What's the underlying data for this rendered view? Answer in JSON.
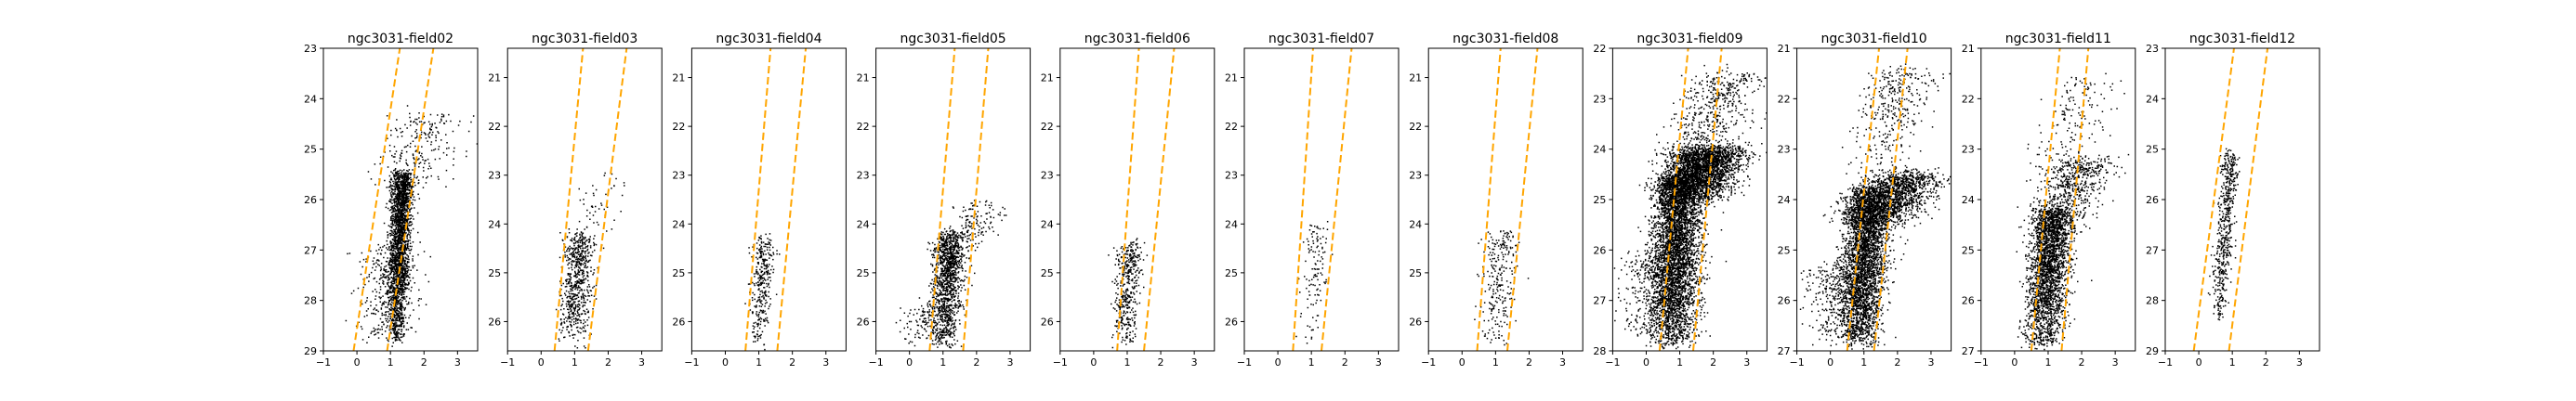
{
  "chart_data": [
    {
      "type": "scatter",
      "title": "ngc3031-field02",
      "xlim": [
        -1,
        3.6
      ],
      "ylim": [
        29,
        23
      ],
      "xticks": [
        "−1",
        "0",
        "1",
        "2",
        "3"
      ],
      "yticks": [
        "23",
        "24",
        "25",
        "26",
        "27",
        "28",
        "29"
      ],
      "guide_lines": [
        {
          "x_at_ymin": -0.1,
          "x_at_ymax": 1.28
        },
        {
          "x_at_ymin": 0.9,
          "x_at_ymax": 2.28
        }
      ],
      "clusters": [
        {
          "x0": 1.12,
          "y0": 28.8,
          "x1": 1.35,
          "y1": 25.5,
          "sx": 0.16,
          "n": 2200
        },
        {
          "x0": 1.4,
          "y0": 26,
          "x1": 2.2,
          "y1": 24.3,
          "sx": 0.5,
          "n": 250
        },
        {
          "x0": 0.7,
          "y0": 28.8,
          "x1": 0.95,
          "y1": 27,
          "sx": 0.45,
          "n": 300
        }
      ],
      "guide_color": "#FFA500"
    },
    {
      "type": "scatter",
      "title": "ngc3031-field03",
      "xlim": [
        -1,
        3.6
      ],
      "ylim": [
        26.6,
        20.4
      ],
      "xticks": [
        "−1",
        "0",
        "1",
        "2",
        "3"
      ],
      "yticks": [
        "21",
        "22",
        "23",
        "24",
        "25",
        "26"
      ],
      "guide_lines": [
        {
          "x_at_ymin": 0.4,
          "x_at_ymax": 1.25
        },
        {
          "x_at_ymin": 1.4,
          "x_at_ymax": 2.55
        }
      ],
      "clusters": [
        {
          "x0": 0.9,
          "y0": 26.5,
          "x1": 1.15,
          "y1": 24.2,
          "sx": 0.22,
          "n": 650
        },
        {
          "x0": 1.3,
          "y0": 24.5,
          "x1": 1.9,
          "y1": 23,
          "sx": 0.35,
          "n": 60
        }
      ],
      "guide_color": "#FFA500"
    },
    {
      "type": "scatter",
      "title": "ngc3031-field04",
      "xlim": [
        -1,
        3.6
      ],
      "ylim": [
        26.6,
        20.4
      ],
      "xticks": [
        "−1",
        "0",
        "1",
        "2",
        "3"
      ],
      "yticks": [
        "21",
        "22",
        "23",
        "24",
        "25",
        "26"
      ],
      "guide_lines": [
        {
          "x_at_ymin": 0.6,
          "x_at_ymax": 1.35
        },
        {
          "x_at_ymin": 1.55,
          "x_at_ymax": 2.4
        }
      ],
      "clusters": [
        {
          "x0": 0.95,
          "y0": 26.5,
          "x1": 1.15,
          "y1": 24.3,
          "sx": 0.16,
          "n": 320
        }
      ],
      "guide_color": "#FFA500"
    },
    {
      "type": "scatter",
      "title": "ngc3031-field05",
      "xlim": [
        -1,
        3.6
      ],
      "ylim": [
        26.6,
        20.4
      ],
      "xticks": [
        "−1",
        "0",
        "1",
        "2",
        "3"
      ],
      "yticks": [
        "21",
        "22",
        "23",
        "24",
        "25",
        "26"
      ],
      "guide_lines": [
        {
          "x_at_ymin": 0.6,
          "x_at_ymax": 1.35
        },
        {
          "x_at_ymin": 1.6,
          "x_at_ymax": 2.35
        }
      ],
      "clusters": [
        {
          "x0": 1.0,
          "y0": 26.5,
          "x1": 1.2,
          "y1": 24.2,
          "sx": 0.22,
          "n": 1200
        },
        {
          "x0": 1.5,
          "y0": 24.5,
          "x1": 2.3,
          "y1": 23.6,
          "sx": 0.4,
          "n": 150
        },
        {
          "x0": 0.2,
          "y0": 26.4,
          "x1": 0.6,
          "y1": 25.6,
          "sx": 0.4,
          "n": 120
        }
      ],
      "guide_color": "#FFA500"
    },
    {
      "type": "scatter",
      "title": "ngc3031-field06",
      "xlim": [
        -1,
        3.6
      ],
      "ylim": [
        26.6,
        20.4
      ],
      "xticks": [
        "−1",
        "0",
        "1",
        "2",
        "3"
      ],
      "yticks": [
        "21",
        "22",
        "23",
        "24",
        "25",
        "26"
      ],
      "guide_lines": [
        {
          "x_at_ymin": 0.7,
          "x_at_ymax": 1.35
        },
        {
          "x_at_ymin": 1.5,
          "x_at_ymax": 2.4
        }
      ],
      "clusters": [
        {
          "x0": 0.9,
          "y0": 26.5,
          "x1": 1.05,
          "y1": 24.4,
          "sx": 0.18,
          "n": 420
        }
      ],
      "guide_color": "#FFA500"
    },
    {
      "type": "scatter",
      "title": "ngc3031-field07",
      "xlim": [
        -1,
        3.6
      ],
      "ylim": [
        26.6,
        20.4
      ],
      "xticks": [
        "−1",
        "0",
        "1",
        "2",
        "3"
      ],
      "yticks": [
        "21",
        "22",
        "23",
        "24",
        "25",
        "26"
      ],
      "guide_lines": [
        {
          "x_at_ymin": 0.45,
          "x_at_ymax": 1.05
        },
        {
          "x_at_ymin": 1.3,
          "x_at_ymax": 2.2
        }
      ],
      "clusters": [
        {
          "x0": 0.95,
          "y0": 26.4,
          "x1": 1.2,
          "y1": 24,
          "sx": 0.18,
          "n": 120
        }
      ],
      "guide_color": "#FFA500"
    },
    {
      "type": "scatter",
      "title": "ngc3031-field08",
      "xlim": [
        -1,
        3.6
      ],
      "ylim": [
        26.6,
        20.4
      ],
      "xticks": [
        "−1",
        "0",
        "1",
        "2",
        "3"
      ],
      "yticks": [
        "21",
        "22",
        "23",
        "24",
        "25",
        "26"
      ],
      "guide_lines": [
        {
          "x_at_ymin": 0.45,
          "x_at_ymax": 1.15
        },
        {
          "x_at_ymin": 1.35,
          "x_at_ymax": 2.25
        }
      ],
      "clusters": [
        {
          "x0": 0.9,
          "y0": 26.5,
          "x1": 1.2,
          "y1": 24.2,
          "sx": 0.25,
          "n": 260
        }
      ],
      "guide_color": "#FFA500"
    },
    {
      "type": "scatter",
      "title": "ngc3031-field09",
      "xlim": [
        -1,
        3.6
      ],
      "ylim": [
        28,
        22
      ],
      "xticks": [
        "−1",
        "0",
        "1",
        "2",
        "3"
      ],
      "yticks": [
        "22",
        "23",
        "24",
        "25",
        "26",
        "27",
        "28"
      ],
      "guide_lines": [
        {
          "x_at_ymin": 0.4,
          "x_at_ymax": 1.25
        },
        {
          "x_at_ymin": 1.4,
          "x_at_ymax": 2.25
        }
      ],
      "clusters": [
        {
          "x0": 0.7,
          "y0": 27.9,
          "x1": 1.0,
          "y1": 24.5,
          "sx": 0.35,
          "n": 4000
        },
        {
          "x0": 1.3,
          "y0": 25,
          "x1": 1.9,
          "y1": 24,
          "sx": 0.55,
          "n": 2500
        },
        {
          "x0": 1.4,
          "y0": 24.3,
          "x1": 2.5,
          "y1": 22.5,
          "sx": 0.55,
          "n": 500
        },
        {
          "x0": 0.4,
          "y0": 27.8,
          "x1": 0.4,
          "y1": 26,
          "sx": 0.55,
          "n": 500
        }
      ],
      "guide_color": "#FFA500"
    },
    {
      "type": "scatter",
      "title": "ngc3031-field10",
      "xlim": [
        -1,
        3.6
      ],
      "ylim": [
        27,
        21
      ],
      "xticks": [
        "−1",
        "0",
        "1",
        "2",
        "3"
      ],
      "yticks": [
        "21",
        "22",
        "23",
        "24",
        "25",
        "26",
        "27"
      ],
      "guide_lines": [
        {
          "x_at_ymin": 0.5,
          "x_at_ymax": 1.45
        },
        {
          "x_at_ymin": 1.3,
          "x_at_ymax": 2.3
        }
      ],
      "clusters": [
        {
          "x0": 0.8,
          "y0": 26.9,
          "x1": 1.15,
          "y1": 23.8,
          "sx": 0.33,
          "n": 3200
        },
        {
          "x0": 1.3,
          "y0": 24.5,
          "x1": 2.3,
          "y1": 23.5,
          "sx": 0.55,
          "n": 1400
        },
        {
          "x0": 1.3,
          "y0": 23.5,
          "x1": 2.2,
          "y1": 21.4,
          "sx": 0.5,
          "n": 350
        },
        {
          "x0": 0.3,
          "y0": 26.8,
          "x1": 0.3,
          "y1": 25.3,
          "sx": 0.5,
          "n": 400
        }
      ],
      "guide_color": "#FFA500"
    },
    {
      "type": "scatter",
      "title": "ngc3031-field11",
      "xlim": [
        -1,
        3.6
      ],
      "ylim": [
        27,
        21
      ],
      "xticks": [
        "−1",
        "0",
        "1",
        "2",
        "3"
      ],
      "yticks": [
        "21",
        "22",
        "23",
        "24",
        "25",
        "26",
        "27"
      ],
      "guide_lines": [
        {
          "x_at_ymin": 0.5,
          "x_at_ymax": 1.35
        },
        {
          "x_at_ymin": 1.4,
          "x_at_ymax": 2.2
        }
      ],
      "clusters": [
        {
          "x0": 0.8,
          "y0": 26.9,
          "x1": 1.15,
          "y1": 24.2,
          "sx": 0.3,
          "n": 2400
        },
        {
          "x0": 1.2,
          "y0": 24.6,
          "x1": 2.0,
          "y1": 23.2,
          "sx": 0.5,
          "n": 600
        },
        {
          "x0": 1.3,
          "y0": 23.5,
          "x1": 2.3,
          "y1": 21.6,
          "sx": 0.45,
          "n": 150
        }
      ],
      "guide_color": "#FFA500"
    },
    {
      "type": "scatter",
      "title": "ngc3031-field12",
      "xlim": [
        -1,
        3.6
      ],
      "ylim": [
        29,
        23
      ],
      "xticks": [
        "−1",
        "0",
        "1",
        "2",
        "3"
      ],
      "yticks": [
        "23",
        "24",
        "25",
        "26",
        "27",
        "28",
        "29"
      ],
      "guide_lines": [
        {
          "x_at_ymin": -0.15,
          "x_at_ymax": 1.05
        },
        {
          "x_at_ymin": 0.9,
          "x_at_ymax": 2.05
        }
      ],
      "clusters": [
        {
          "x0": 0.55,
          "y0": 28.4,
          "x1": 0.95,
          "y1": 25.1,
          "sx": 0.13,
          "n": 550
        }
      ],
      "guide_color": "#FFA500"
    }
  ]
}
